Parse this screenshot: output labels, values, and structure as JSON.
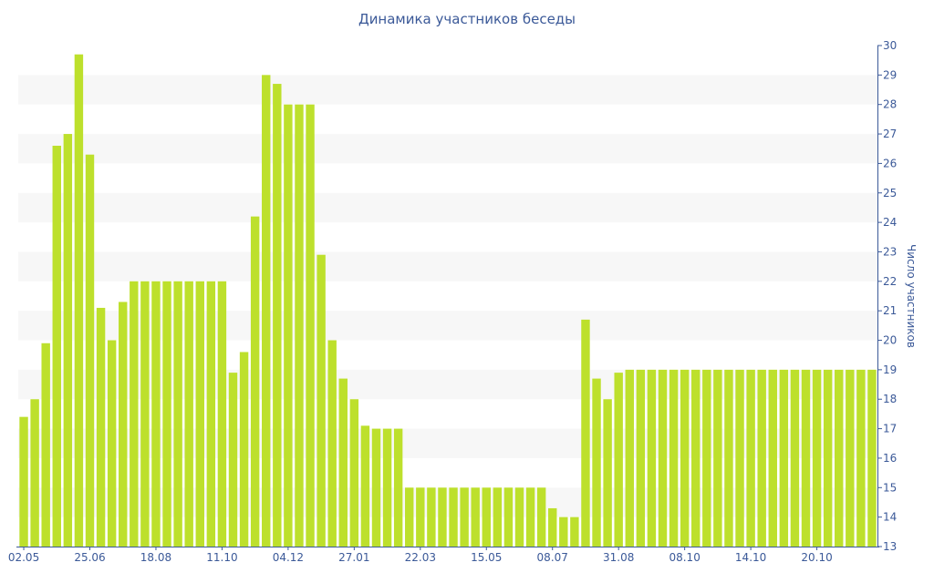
{
  "chart_data": {
    "type": "bar",
    "title": "Динамика участников беседы",
    "xlabel": "",
    "ylabel": "Число участников",
    "ylim": [
      13,
      30
    ],
    "y_ticks": [
      13,
      14,
      15,
      16,
      17,
      18,
      19,
      20,
      21,
      22,
      23,
      24,
      25,
      26,
      27,
      28,
      29,
      30
    ],
    "x_tick_labels": [
      "02.05",
      "25.06",
      "18.08",
      "11.10",
      "04.12",
      "27.01",
      "22.03",
      "15.05",
      "08.07",
      "31.08",
      "08.10",
      "14.10",
      "20.10"
    ],
    "x_tick_bar_index": [
      0,
      6,
      12,
      18,
      24,
      30,
      36,
      42,
      48,
      54,
      60,
      66,
      72
    ],
    "values": [
      17.4,
      18,
      19.9,
      26.6,
      27,
      29.7,
      26.3,
      21.1,
      20,
      21.3,
      22,
      22,
      22,
      22,
      22,
      22,
      22,
      22,
      22,
      18.9,
      19.6,
      24.2,
      29,
      28.7,
      28,
      28,
      28,
      22.9,
      20,
      18.7,
      18,
      17.1,
      17,
      17,
      17,
      15,
      15,
      15,
      15,
      15,
      15,
      15,
      15,
      15,
      15,
      15,
      15,
      15,
      14.3,
      14,
      14,
      20.7,
      18.7,
      18,
      18.9,
      19,
      19,
      19,
      19,
      19,
      19,
      19,
      19,
      19,
      19,
      19,
      19,
      19,
      19,
      19,
      19,
      19,
      19,
      19,
      19,
      19,
      19,
      19
    ],
    "bar_color": "#bde02c",
    "band_color": "#f7f7f7",
    "text_color": "#3b5998",
    "grid": "alternating horizontal bands",
    "y_axis_position": "right"
  }
}
